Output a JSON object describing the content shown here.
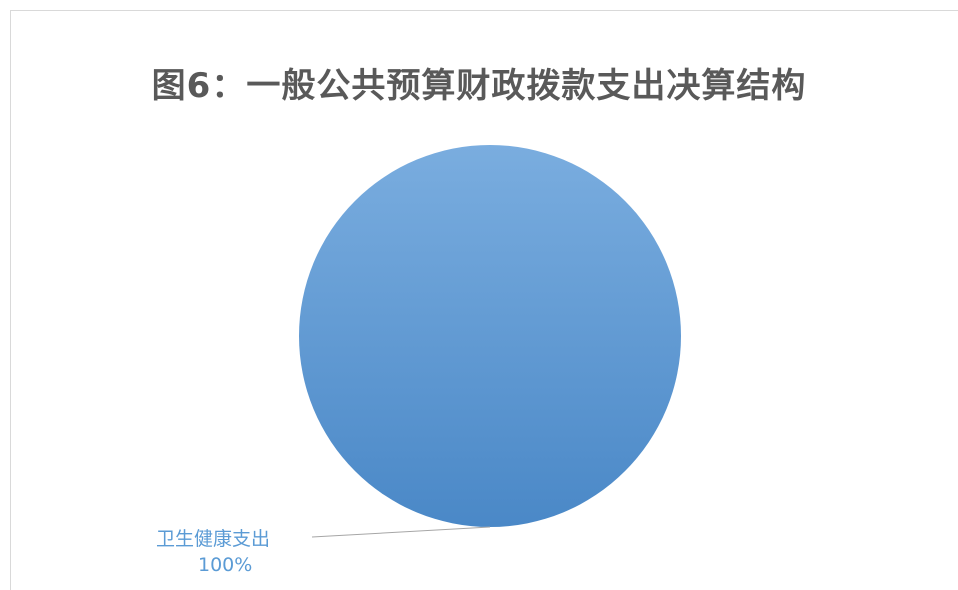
{
  "chart_data": {
    "type": "pie",
    "title": "图6：一般公共预算财政拨款支出决算结构",
    "slices": [
      {
        "label": "卫生健康支出",
        "value_label": "100%",
        "value": 100,
        "color": "#5b9bd5"
      }
    ],
    "colors": {
      "slice_light": "#7aaddf",
      "slice_dark": "#4a88c7",
      "label": "#5b9bd5",
      "title": "#595959",
      "leader_line": "#a6a6a6"
    }
  }
}
